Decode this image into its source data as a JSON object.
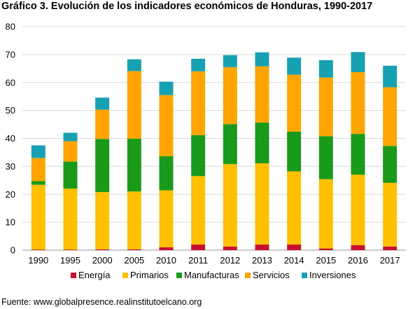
{
  "title": "Gráfico 3. Evolución de los indicadores económicos de Honduras, 1990-2017",
  "source": "Fuente: www.globalpresence.realinstitutoelcano.org",
  "colors": {
    "Energía": "#c8102e",
    "Primarios": "#ffc000",
    "Manufacturas": "#1a9a1a",
    "Servicios": "#ffa500",
    "Inversiones": "#16a1b3"
  },
  "chart_data": {
    "type": "bar",
    "stacked": true,
    "categories": [
      "1990",
      "1995",
      "2000",
      "2005",
      "2010",
      "2011",
      "2012",
      "2013",
      "2014",
      "2015",
      "2016",
      "2017"
    ],
    "series": [
      {
        "name": "Energía",
        "values": [
          0.2,
          0.2,
          0.3,
          0.3,
          1.0,
          2.0,
          1.3,
          2.0,
          2.0,
          0.6,
          1.8,
          1.3
        ]
      },
      {
        "name": "Primarios",
        "values": [
          23.2,
          21.8,
          20.5,
          20.7,
          20.4,
          24.5,
          29.5,
          29.1,
          26.2,
          24.8,
          25.2,
          22.8
        ]
      },
      {
        "name": "Manufacturas",
        "values": [
          1.3,
          9.7,
          19.0,
          18.9,
          12.2,
          14.7,
          14.3,
          14.6,
          14.2,
          15.4,
          14.6,
          13.2
        ]
      },
      {
        "name": "Servicios",
        "values": [
          8.3,
          7.3,
          10.5,
          24.2,
          21.9,
          22.8,
          20.4,
          20.1,
          20.4,
          21.0,
          22.1,
          21.0
        ]
      },
      {
        "name": "Inversiones",
        "values": [
          4.5,
          3.0,
          4.3,
          4.2,
          4.8,
          4.5,
          4.3,
          5.0,
          6.1,
          6.2,
          7.2,
          7.7
        ]
      }
    ],
    "ylim": [
      0,
      80
    ],
    "yticks": [
      "0",
      "10",
      "20",
      "30",
      "40",
      "50",
      "60",
      "70",
      "80"
    ],
    "grid": true,
    "legend_position": "bottom"
  }
}
